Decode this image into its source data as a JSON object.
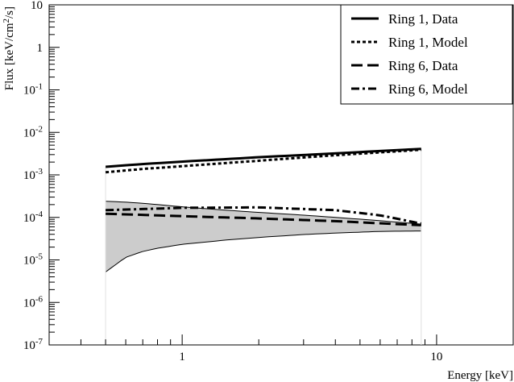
{
  "chart_data": {
    "type": "line",
    "xlabel": "Energy [keV]",
    "ylabel": "Flux [keV/cm²/s]",
    "xscale": "log",
    "yscale": "log",
    "xlim": [
      0.3,
      20
    ],
    "ylim": [
      1e-07,
      10
    ],
    "grid": false,
    "legend_position": "top-right",
    "x_tick_labels": [
      {
        "value": 1,
        "label": "1"
      },
      {
        "value": 10,
        "label": "10"
      }
    ],
    "y_tick_labels": [
      {
        "value": 10,
        "base": "10",
        "exp": ""
      },
      {
        "value": 1,
        "base": "1",
        "exp": ""
      },
      {
        "value": 0.1,
        "base": "10",
        "exp": "-1"
      },
      {
        "value": 0.01,
        "base": "10",
        "exp": "-2"
      },
      {
        "value": 0.001,
        "base": "10",
        "exp": "-3"
      },
      {
        "value": 0.0001,
        "base": "10",
        "exp": "-4"
      },
      {
        "value": 1e-05,
        "base": "10",
        "exp": "-5"
      },
      {
        "value": 1e-06,
        "base": "10",
        "exp": "-6"
      },
      {
        "value": 1e-07,
        "base": "10",
        "exp": "-7"
      }
    ],
    "series": [
      {
        "name": "Ring 1, Data",
        "style": "solid",
        "x": [
          0.5,
          0.7,
          1.0,
          2.0,
          4.0,
          8.7
        ],
        "y": [
          0.00155,
          0.0018,
          0.00205,
          0.0026,
          0.0032,
          0.0041
        ]
      },
      {
        "name": "Ring 1, Model",
        "style": "dotted",
        "x": [
          0.5,
          0.7,
          1.0,
          2.0,
          4.0,
          8.7
        ],
        "y": [
          0.00115,
          0.00138,
          0.0016,
          0.00215,
          0.0029,
          0.0039
        ]
      },
      {
        "name": "Ring 6, Data",
        "style": "dashed",
        "x": [
          0.5,
          1.0,
          2.0,
          4.0,
          8.7
        ],
        "y": [
          0.000122,
          0.000107,
          9.45e-05,
          8.15e-05,
          6.55e-05
        ]
      },
      {
        "name": "Ring 6, Model",
        "style": "dashdot",
        "x": [
          0.5,
          1.0,
          2.0,
          4.0,
          6.0,
          8.7
        ],
        "y": [
          0.000148,
          0.000168,
          0.000172,
          0.000148,
          0.000112,
          7.15e-05
        ]
      }
    ],
    "band": {
      "x": [
        0.5,
        0.6,
        0.7,
        0.8,
        1.0,
        1.5,
        2.0,
        3.0,
        4.0,
        6.0,
        8.7
      ],
      "upper": [
        0.00024,
        0.000228,
        0.000214,
        0.0002,
        0.000177,
        0.000147,
        0.000131,
        0.000113,
        0.0001,
        8.35e-05,
        6.95e-05
      ],
      "lower": [
        5.2e-06,
        1.15e-05,
        1.58e-05,
        1.88e-05,
        2.32e-05,
        2.95e-05,
        3.38e-05,
        3.95e-05,
        4.28e-05,
        4.68e-05,
        4.8e-05
      ]
    }
  }
}
